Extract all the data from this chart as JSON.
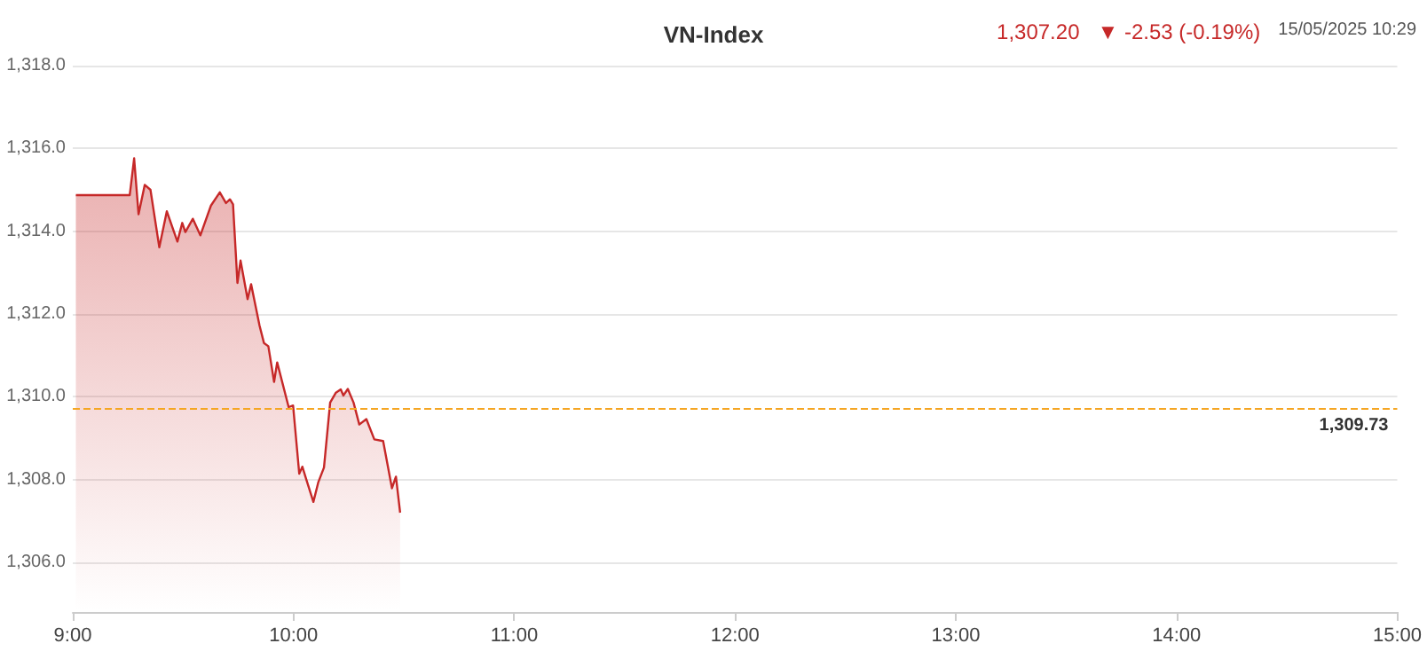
{
  "chart_data": {
    "type": "area",
    "title": "VN-Index",
    "annotations": [
      "1,307.20",
      "▼ -2.53 (-0.19%)",
      "15/05/2025 10:29"
    ],
    "x": [
      9.014,
      9.258,
      9.278,
      9.298,
      9.326,
      9.352,
      9.392,
      9.426,
      9.474,
      9.496,
      9.51,
      9.544,
      9.578,
      9.626,
      9.666,
      9.694,
      9.712,
      9.726,
      9.746,
      9.76,
      9.792,
      9.808,
      9.846,
      9.866,
      9.886,
      9.912,
      9.926,
      9.978,
      9.998,
      10.026,
      10.04,
      10.058,
      10.09,
      10.112,
      10.138,
      10.166,
      10.192,
      10.214,
      10.226,
      10.246,
      10.272,
      10.298,
      10.33,
      10.366,
      10.406,
      10.446,
      10.464,
      10.483
    ],
    "series": [
      {
        "color": "#c62828",
        "values": [
          1314.87,
          1314.87,
          1315.76,
          1314.41,
          1315.12,
          1315.0,
          1313.61,
          1314.48,
          1313.75,
          1314.2,
          1313.98,
          1314.3,
          1313.9,
          1314.62,
          1314.94,
          1314.68,
          1314.77,
          1314.65,
          1312.75,
          1313.29,
          1312.36,
          1312.72,
          1311.72,
          1311.3,
          1311.22,
          1310.36,
          1310.83,
          1309.75,
          1309.79,
          1308.14,
          1308.31,
          1308.0,
          1307.46,
          1307.93,
          1308.29,
          1309.86,
          1310.1,
          1310.18,
          1310.03,
          1310.19,
          1309.86,
          1309.33,
          1309.46,
          1308.97,
          1308.93,
          1307.79,
          1308.07,
          1307.2
        ]
      }
    ],
    "xlim": [
      9,
      15
    ],
    "xticks": [
      {
        "value": 9,
        "label": "9:00"
      },
      {
        "value": 10,
        "label": "10:00"
      },
      {
        "value": 11,
        "label": "11:00"
      },
      {
        "value": 12,
        "label": "12:00"
      },
      {
        "value": 13,
        "label": "13:00"
      },
      {
        "value": 14,
        "label": "14:00"
      },
      {
        "value": 15,
        "label": "15:00"
      }
    ],
    "ylim": [
      1304.8,
      1318
    ],
    "yticks": [
      {
        "value": 1306,
        "label": "1,306.0"
      },
      {
        "value": 1308,
        "label": "1,308.0"
      },
      {
        "value": 1310,
        "label": "1,310.0"
      },
      {
        "value": 1312,
        "label": "1,312.0"
      },
      {
        "value": 1314,
        "label": "1,314.0"
      },
      {
        "value": 1316,
        "label": "1,316.0"
      },
      {
        "value": 1318,
        "label": "1,318.0"
      }
    ],
    "ref_lines": [
      {
        "axis": "y",
        "value": 1309.73,
        "label": "1,309.73",
        "color": "#f5a623",
        "line_style": "dashed"
      }
    ],
    "grid": "y"
  }
}
